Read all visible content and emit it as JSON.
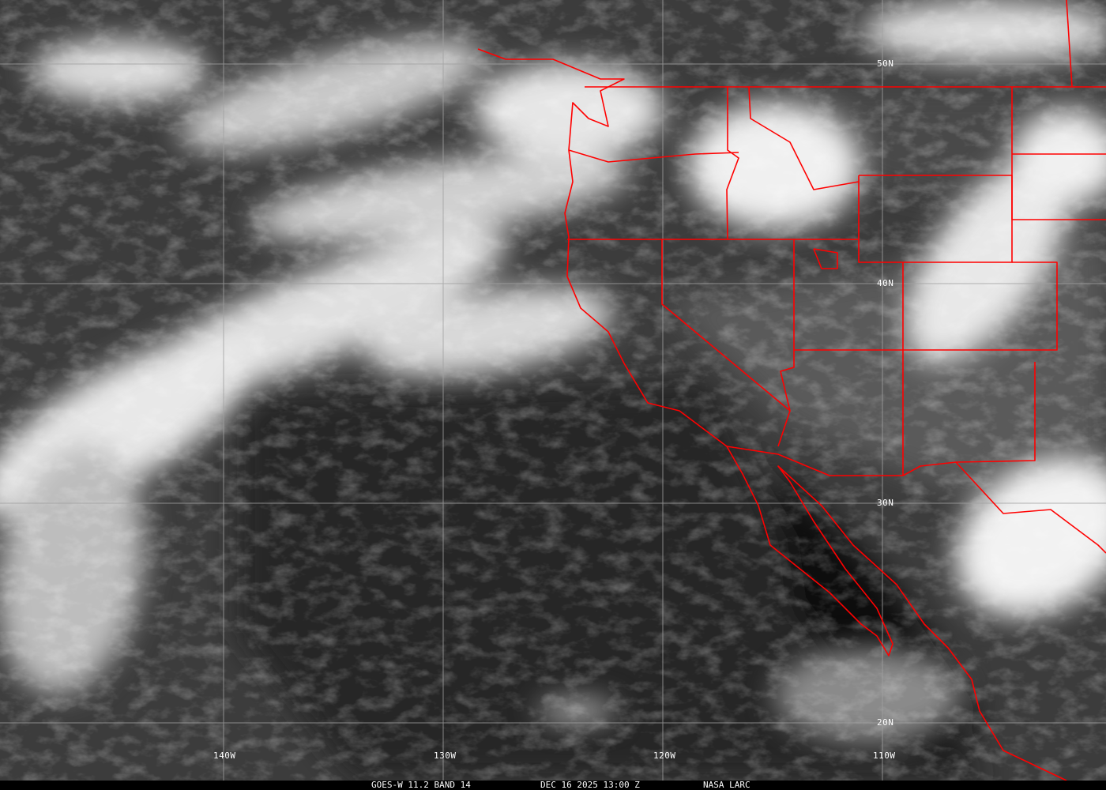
{
  "image": {
    "type": "satellite infrared imagery",
    "colors": {
      "borders": "#ff0000",
      "grid": "#a0a0a0",
      "labels": "#ffffff",
      "ocean_clear": "#1e1e1e"
    }
  },
  "grid_labels": {
    "lat": [
      "50N",
      "40N",
      "30N",
      "20N"
    ],
    "lon": [
      "140W",
      "130W",
      "120W",
      "110W"
    ]
  },
  "caption": {
    "product": "GOES-W 11.2 BAND 14",
    "datetime": "DEC 16 2025 13:00 Z",
    "source": "NASA LARC"
  }
}
